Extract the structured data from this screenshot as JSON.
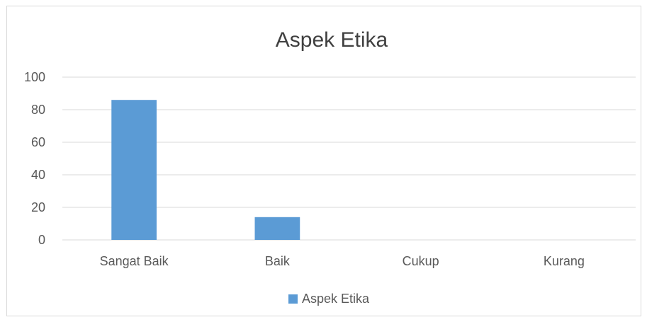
{
  "chart_data": {
    "type": "bar",
    "title": "Aspek Etika",
    "categories": [
      "Sangat Baik",
      "Baik",
      "Cukup",
      "Kurang"
    ],
    "series": [
      {
        "name": "Aspek Etika",
        "values": [
          86,
          14,
          0,
          0
        ],
        "color": "#5b9bd5"
      }
    ],
    "ylim": [
      0,
      100
    ],
    "yticks": [
      "0",
      "20",
      "40",
      "60",
      "80",
      "100"
    ],
    "grid": true,
    "legend_position": "bottom"
  }
}
